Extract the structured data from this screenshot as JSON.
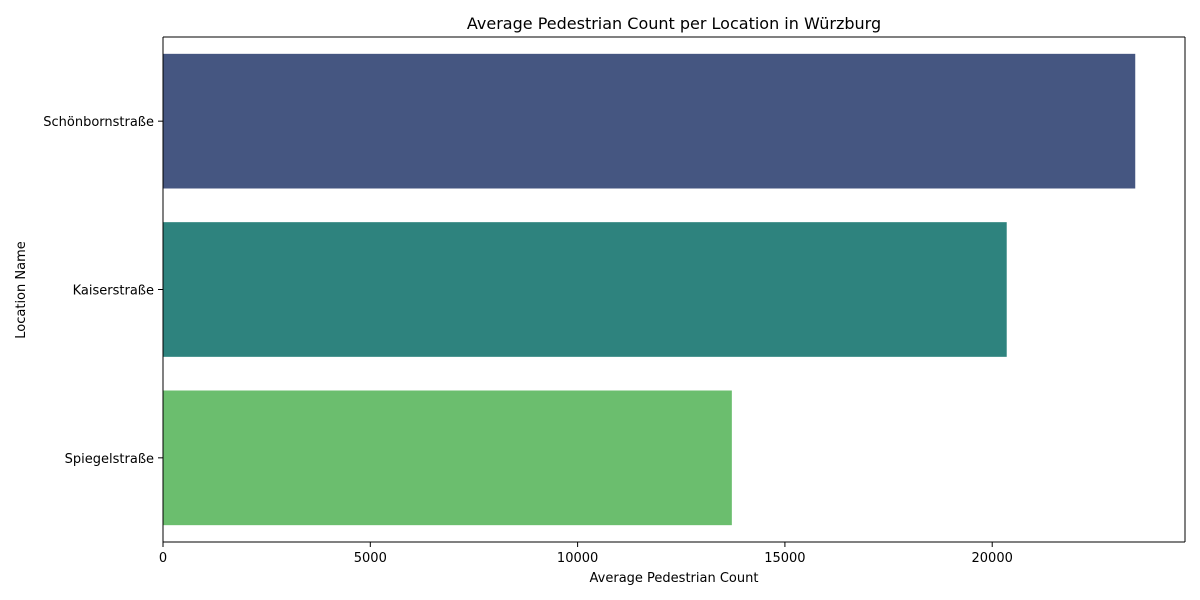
{
  "chart_data": {
    "type": "bar",
    "orientation": "horizontal",
    "title": "Average Pedestrian Count per Location in Würzburg",
    "xlabel": "Average Pedestrian Count",
    "ylabel": "Location Name",
    "categories": [
      "Schönbornstraße",
      "Kaiserstraße",
      "Spiegelstraße"
    ],
    "values": [
      23450,
      20350,
      13720
    ],
    "colors": [
      "#455681",
      "#2e837e",
      "#6bbe6e"
    ],
    "xlim": [
      0,
      24650
    ],
    "xticks": [
      0,
      5000,
      10000,
      15000,
      20000
    ],
    "grid": false
  }
}
